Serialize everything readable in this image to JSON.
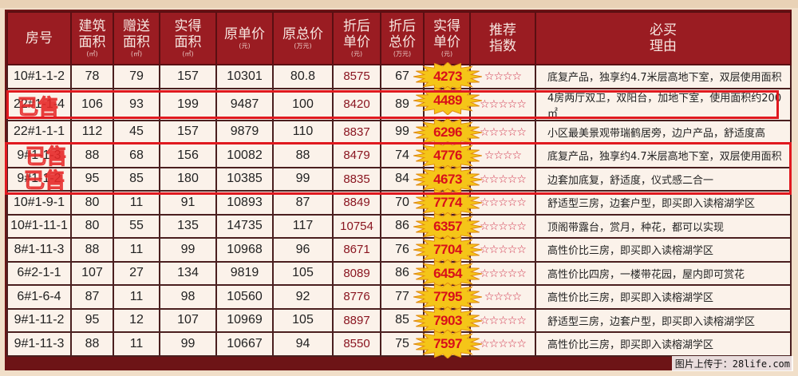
{
  "headers": [
    {
      "label": "房号",
      "unit": ""
    },
    {
      "label": "建筑面积",
      "unit": "(㎡)"
    },
    {
      "label": "赠送面积",
      "unit": "(㎡)"
    },
    {
      "label": "实得面积",
      "unit": "(㎡)"
    },
    {
      "label": "原单价",
      "unit": "(元)"
    },
    {
      "label": "原总价",
      "unit": "(万元)"
    },
    {
      "label": "折后单价",
      "unit": "(元)"
    },
    {
      "label": "折后总价",
      "unit": "(万元)"
    },
    {
      "label": "实得单价",
      "unit": "(元)"
    },
    {
      "label": "推荐指数",
      "unit": ""
    },
    {
      "label": "必买理由",
      "unit": ""
    }
  ],
  "rows": [
    {
      "room": "10#1-1-2",
      "build": "78",
      "gift": "79",
      "actual": "157",
      "orig_unit": "10301",
      "orig_total": "80.8",
      "disc_unit": "8575",
      "disc_total": "67",
      "real_unit": "4273",
      "stars": 4,
      "reason": "底复产品，独享约4.7米层高地下室，双层使用面积"
    },
    {
      "room": "22#1-1-4",
      "build": "106",
      "gift": "93",
      "actual": "199",
      "orig_unit": "9487",
      "orig_total": "100",
      "disc_unit": "8420",
      "disc_total": "89",
      "real_unit": "4489",
      "stars": 5,
      "reason": "4房两厅双卫，双阳台，加地下室，使用面积约200㎡"
    },
    {
      "room": "22#1-1-1",
      "build": "112",
      "gift": "45",
      "actual": "157",
      "orig_unit": "9879",
      "orig_total": "110",
      "disc_unit": "8837",
      "disc_total": "99",
      "real_unit": "6296",
      "stars": 5,
      "reason": "小区最美景观带瑞鹤居旁，边户产品，舒适度高"
    },
    {
      "room": "9#1-1-3",
      "build": "88",
      "gift": "68",
      "actual": "156",
      "orig_unit": "10082",
      "orig_total": "88",
      "disc_unit": "8479",
      "disc_total": "74",
      "real_unit": "4776",
      "stars": 4,
      "reason": "底复产品，独享约4.7米层高地下室，双层使用面积"
    },
    {
      "room": "9#1-1-2",
      "build": "95",
      "gift": "85",
      "actual": "180",
      "orig_unit": "10385",
      "orig_total": "99",
      "disc_unit": "8835",
      "disc_total": "84",
      "real_unit": "4673",
      "stars": 5,
      "reason": "边套加底复，舒适度，仪式感二合一"
    },
    {
      "room": "10#1-9-1",
      "build": "80",
      "gift": "11",
      "actual": "91",
      "orig_unit": "10893",
      "orig_total": "87",
      "disc_unit": "8849",
      "disc_total": "70",
      "real_unit": "7774",
      "stars": 5,
      "reason": "舒适型三房，边套户型，即买即入读榕湖学区"
    },
    {
      "room": "10#1-11-1",
      "build": "80",
      "gift": "55",
      "actual": "135",
      "orig_unit": "14735",
      "orig_total": "117",
      "disc_unit": "10754",
      "disc_total": "86",
      "real_unit": "6357",
      "stars": 5,
      "reason": "顶阁带露台，赏月，种花，都可以实现"
    },
    {
      "room": "8#1-11-3",
      "build": "88",
      "gift": "11",
      "actual": "99",
      "orig_unit": "10968",
      "orig_total": "96",
      "disc_unit": "8671",
      "disc_total": "76",
      "real_unit": "7704",
      "stars": 5,
      "reason": "高性价比三房，即买即入读榕湖学区"
    },
    {
      "room": "6#2-1-1",
      "build": "107",
      "gift": "27",
      "actual": "134",
      "orig_unit": "9819",
      "orig_total": "105",
      "disc_unit": "8089",
      "disc_total": "86",
      "real_unit": "6454",
      "stars": 5,
      "reason": "高性价比四房，一楼带花园，屋内即可赏花"
    },
    {
      "room": "6#1-6-4",
      "build": "87",
      "gift": "11",
      "actual": "98",
      "orig_unit": "10560",
      "orig_total": "92",
      "disc_unit": "8776",
      "disc_total": "77",
      "real_unit": "7795",
      "stars": 4,
      "reason": "高性价比三房，即买即入读榕湖学区"
    },
    {
      "room": "9#1-11-2",
      "build": "95",
      "gift": "12",
      "actual": "107",
      "orig_unit": "10969",
      "orig_total": "105",
      "disc_unit": "8897",
      "disc_total": "85",
      "real_unit": "7903",
      "stars": 5,
      "reason": "舒适型三房，边套户型，即买即入读榕湖学区"
    },
    {
      "room": "9#1-11-3",
      "build": "88",
      "gift": "11",
      "actual": "99",
      "orig_unit": "10667",
      "orig_total": "94",
      "disc_unit": "8550",
      "disc_total": "75",
      "real_unit": "7597",
      "stars": 5,
      "reason": "高性价比三房，即买即入读榕湖学区"
    }
  ],
  "sold_labels": [
    "已售",
    "已售",
    "已售"
  ],
  "watermark": "图片上传于：28life.com",
  "colors": {
    "header_bg": "#9a1c22",
    "cell_bg": "#fbf2ea",
    "mark": "#e0191f",
    "burst": "#f5c518",
    "burst_text": "#d8101a",
    "stars": "#d0304a"
  }
}
